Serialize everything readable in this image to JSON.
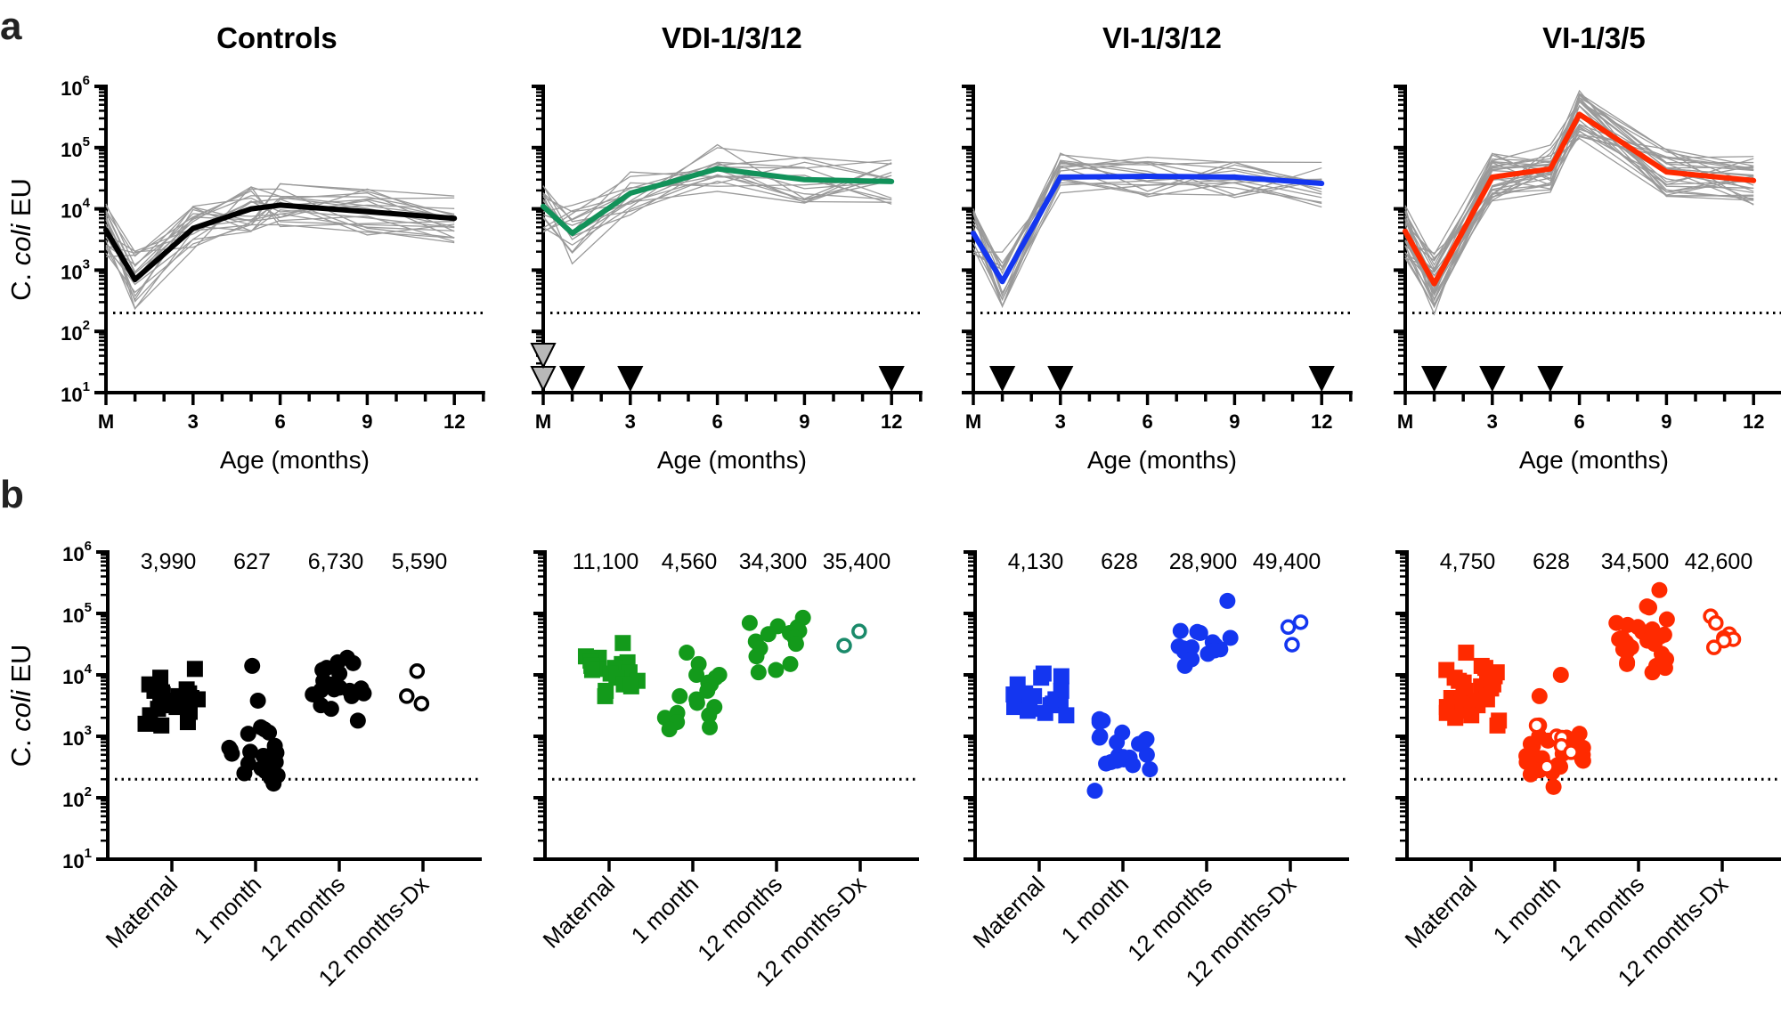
{
  "figure": {
    "panel_letters": [
      "a",
      "b"
    ],
    "ylabel_prefix": "C. ",
    "ylabel_italic": "coli",
    "ylabel_suffix": " EU",
    "xlabel": "Age (months)",
    "lod": 200
  },
  "chart_data": [
    {
      "type": "line",
      "panel": "a",
      "title": "Controls",
      "color": "#000000",
      "xlabel": "Age (months)",
      "ylabel": "C. coli EU",
      "yscale": "log",
      "ylim": [
        10,
        1000000
      ],
      "ytick_labels": [
        "10^1",
        "10^2",
        "10^3",
        "10^4",
        "10^5",
        "10^6"
      ],
      "xlim": [
        0,
        13
      ],
      "xtick_labels": [
        {
          "x": 0,
          "label": "M"
        },
        {
          "x": 3,
          "label": "3"
        },
        {
          "x": 6,
          "label": "6"
        },
        {
          "x": 9,
          "label": "9"
        },
        {
          "x": 12,
          "label": "12"
        }
      ],
      "show_yticklabels": true,
      "lod": 200,
      "mean": {
        "x": [
          0,
          1,
          3,
          5,
          6,
          9,
          12
        ],
        "y": [
          4500,
          700,
          4800,
          10000,
          11500,
          9000,
          7000
        ]
      },
      "vaccination_markers": [],
      "maternal_markers": []
    },
    {
      "type": "line",
      "panel": "a",
      "title": "VDI-1/3/12",
      "color": "#12925a",
      "xlabel": "Age (months)",
      "yscale": "log",
      "ylim": [
        10,
        1000000
      ],
      "xlim": [
        0,
        13
      ],
      "xtick_labels": [
        {
          "x": 0,
          "label": "M"
        },
        {
          "x": 3,
          "label": "3"
        },
        {
          "x": 6,
          "label": "6"
        },
        {
          "x": 9,
          "label": "9"
        },
        {
          "x": 12,
          "label": "12"
        }
      ],
      "show_yticklabels": false,
      "lod": 200,
      "mean": {
        "x": [
          0,
          1,
          3,
          6,
          9,
          12
        ],
        "y": [
          11000,
          4000,
          18000,
          45000,
          30000,
          28000
        ]
      },
      "vaccination_markers": [
        1,
        3,
        12
      ],
      "maternal_markers": [
        0,
        0
      ]
    },
    {
      "type": "line",
      "panel": "a",
      "title": "VI-1/3/12",
      "color": "#1436f0",
      "xlabel": "Age (months)",
      "yscale": "log",
      "ylim": [
        10,
        1000000
      ],
      "xlim": [
        0,
        13
      ],
      "xtick_labels": [
        {
          "x": 0,
          "label": "M"
        },
        {
          "x": 3,
          "label": "3"
        },
        {
          "x": 6,
          "label": "6"
        },
        {
          "x": 9,
          "label": "9"
        },
        {
          "x": 12,
          "label": "12"
        }
      ],
      "show_yticklabels": false,
      "lod": 200,
      "mean": {
        "x": [
          0,
          1,
          3,
          6,
          9,
          12
        ],
        "y": [
          4000,
          650,
          33000,
          34000,
          33000,
          26000
        ]
      },
      "vaccination_markers": [
        1,
        3,
        12
      ],
      "maternal_markers": []
    },
    {
      "type": "line",
      "panel": "a",
      "title": "VI-1/3/5",
      "color": "#ff2a00",
      "xlabel": "Age (months)",
      "yscale": "log",
      "ylim": [
        10,
        1000000
      ],
      "xlim": [
        0,
        13
      ],
      "xtick_labels": [
        {
          "x": 0,
          "label": "M"
        },
        {
          "x": 3,
          "label": "3"
        },
        {
          "x": 6,
          "label": "6"
        },
        {
          "x": 9,
          "label": "9"
        },
        {
          "x": 12,
          "label": "12"
        }
      ],
      "show_yticklabels": false,
      "lod": 200,
      "mean": {
        "x": [
          0,
          1,
          3,
          5,
          6,
          9,
          12
        ],
        "y": [
          4300,
          600,
          33000,
          45000,
          350000,
          40000,
          29000
        ]
      },
      "vaccination_markers": [
        1,
        3,
        5
      ],
      "maternal_markers": []
    },
    {
      "type": "scatter",
      "panel": "b",
      "group": "Controls",
      "color": "#000000",
      "dx_color": "#000000",
      "ylabel": "C. coli EU",
      "yscale": "log",
      "ylim": [
        10,
        1000000
      ],
      "show_yticklabels": true,
      "lod": 200,
      "categories": [
        "Maternal",
        "1 month",
        "12 months",
        "12 months-Dx"
      ],
      "gmt_labels": [
        "3,990",
        "627",
        "6,730",
        "5,590"
      ],
      "points": [
        {
          "cat": 0,
          "marker": "square",
          "values": [
            12500,
            9000,
            7000,
            6500,
            5800,
            5500,
            5200,
            5000,
            4800,
            4500,
            4200,
            4000,
            3800,
            3600,
            3400,
            3200,
            3000,
            2800,
            2500,
            2200,
            1700,
            1600,
            1500
          ]
        },
        {
          "cat": 1,
          "marker": "circle",
          "values": [
            14000,
            3800,
            1400,
            1300,
            1150,
            1100,
            700,
            650,
            600,
            560,
            540,
            520,
            500,
            480,
            380,
            360,
            350,
            340,
            300,
            270,
            250,
            230,
            210,
            170
          ]
        },
        {
          "cat": 2,
          "marker": "circle",
          "values": [
            19000,
            16000,
            15500,
            13000,
            12000,
            10500,
            8000,
            7000,
            6200,
            6000,
            5800,
            5600,
            5500,
            5200,
            5000,
            4800,
            4500,
            3200,
            2800,
            1800
          ]
        },
        {
          "cat": 3,
          "marker": "open-circle",
          "values": [
            11500,
            4500,
            3400
          ]
        }
      ]
    },
    {
      "type": "scatter",
      "panel": "b",
      "group": "VDI-1/3/12",
      "color": "#139a1b",
      "dx_color": "#1a8a6a",
      "yscale": "log",
      "ylim": [
        10,
        1000000
      ],
      "show_yticklabels": false,
      "lod": 200,
      "categories": [
        "Maternal",
        "1 month",
        "12 months",
        "12 months-Dx"
      ],
      "gmt_labels": [
        "11,100",
        "4,560",
        "34,300",
        "35,400"
      ],
      "points": [
        {
          "cat": 0,
          "marker": "square",
          "values": [
            33000,
            20000,
            19000,
            17000,
            16000,
            15000,
            14000,
            13000,
            12500,
            12000,
            11000,
            10500,
            9000,
            8000,
            7000,
            6500,
            5500,
            4500
          ]
        },
        {
          "cat": 1,
          "marker": "circle",
          "values": [
            23000,
            15000,
            10000,
            10000,
            9000,
            7500,
            7000,
            5500,
            4500,
            4000,
            3500,
            3000,
            2400,
            2200,
            2000,
            1700,
            1400,
            1300
          ]
        },
        {
          "cat": 2,
          "marker": "circle",
          "values": [
            85000,
            70000,
            62000,
            60000,
            52000,
            48000,
            46000,
            40000,
            35000,
            32000,
            27000,
            20000,
            15000,
            12000,
            11000
          ]
        },
        {
          "cat": 3,
          "marker": "open-circle",
          "values": [
            51000,
            30000
          ]
        }
      ]
    },
    {
      "type": "scatter",
      "panel": "b",
      "group": "VI-1/3/12",
      "color": "#1436f0",
      "dx_color": "#1436f0",
      "yscale": "log",
      "ylim": [
        10,
        1000000
      ],
      "show_yticklabels": false,
      "lod": 200,
      "categories": [
        "Maternal",
        "1 month",
        "12 months",
        "12 months-Dx"
      ],
      "gmt_labels": [
        "4,130",
        "628",
        "28,900",
        "49,400"
      ],
      "points": [
        {
          "cat": 0,
          "marker": "square",
          "values": [
            10500,
            9500,
            9000,
            7000,
            5500,
            5000,
            4800,
            4500,
            4300,
            4000,
            3800,
            3600,
            3400,
            3200,
            3000,
            2800,
            2600,
            2400,
            2200
          ]
        },
        {
          "cat": 1,
          "marker": "circle",
          "values": [
            1900,
            1800,
            1700,
            1150,
            1000,
            950,
            900,
            850,
            800,
            750,
            500,
            480,
            460,
            450,
            440,
            420,
            400,
            380,
            360,
            340,
            290,
            130
          ]
        },
        {
          "cat": 2,
          "marker": "circle",
          "values": [
            160000,
            52000,
            50000,
            48000,
            40000,
            34000,
            30000,
            29000,
            28000,
            27000,
            26000,
            25000,
            24000,
            22000,
            18000,
            14000
          ]
        },
        {
          "cat": 3,
          "marker": "open-circle",
          "values": [
            72000,
            60000,
            31000
          ]
        }
      ]
    },
    {
      "type": "scatter",
      "panel": "b",
      "group": "VI-1/3/5",
      "color": "#ff2a00",
      "dx_color": "#ff2a00",
      "yscale": "log",
      "ylim": [
        10,
        1000000
      ],
      "show_yticklabels": false,
      "lod": 200,
      "categories": [
        "Maternal",
        "1 month",
        "12 months",
        "12 months-Dx"
      ],
      "gmt_labels": [
        "4,750",
        "628",
        "34,500",
        "42,600"
      ],
      "points": [
        {
          "cat": 0,
          "marker": "square",
          "values": [
            23000,
            14000,
            13000,
            12000,
            11000,
            10000,
            9500,
            9000,
            8000,
            7500,
            7000,
            6500,
            6000,
            5500,
            5000,
            4500,
            4200,
            4000,
            3800,
            3600,
            3400,
            3200,
            3000,
            2800,
            2600,
            2400,
            2200,
            2000,
            1800,
            1500
          ]
        },
        {
          "cat": 1,
          "marker": "circle",
          "values": [
            10000,
            4500,
            1500,
            1100,
            1000,
            950,
            900,
            850,
            800,
            750,
            700,
            650,
            600,
            560,
            520,
            500,
            480,
            460,
            440,
            420,
            400,
            380,
            360,
            340,
            320,
            300,
            280,
            260,
            240,
            150
          ]
        },
        {
          "cat": 1,
          "marker": "open-circle",
          "values": [
            1500,
            1000,
            950,
            700,
            550,
            320
          ]
        },
        {
          "cat": 2,
          "marker": "circle",
          "values": [
            240000,
            130000,
            125000,
            80000,
            70000,
            65000,
            60000,
            55000,
            50000,
            48000,
            45000,
            42000,
            40000,
            38000,
            36000,
            34000,
            32000,
            30000,
            28000,
            26000,
            24000,
            22000,
            20000,
            18000,
            16000,
            15000,
            14000,
            13000,
            11000
          ]
        },
        {
          "cat": 3,
          "marker": "open-circle",
          "values": [
            90000,
            70000,
            46000,
            40000,
            38000,
            36000,
            28000
          ]
        }
      ]
    }
  ]
}
